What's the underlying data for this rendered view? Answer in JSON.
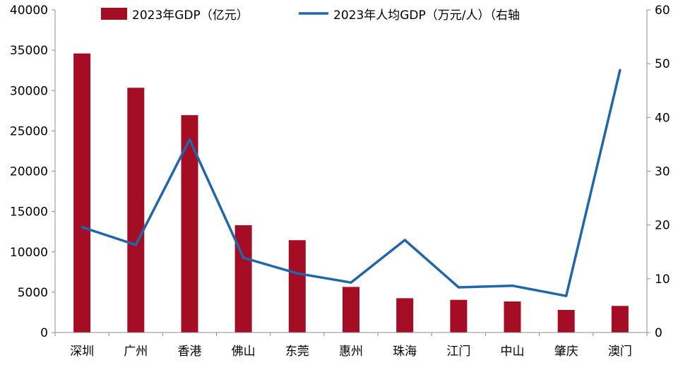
{
  "chart_data": {
    "type": "bar",
    "categories": [
      "深圳",
      "广州",
      "香港",
      "佛山",
      "东莞",
      "惠州",
      "珠海",
      "江门",
      "中山",
      "肇庆",
      "澳门"
    ],
    "series": [
      {
        "name": "2023年GDP（亿元）",
        "type": "bar",
        "axis": "left",
        "color": "#A50D24",
        "values": [
          34600,
          30350,
          26950,
          13300,
          11450,
          5650,
          4250,
          4050,
          3850,
          2800,
          3300
        ]
      },
      {
        "name": "2023年人均GDP（万元/人）（右轴",
        "type": "line",
        "axis": "right",
        "color": "#1F67AA",
        "values": [
          19.6,
          16.3,
          35.9,
          13.9,
          11.0,
          9.3,
          17.2,
          8.4,
          8.7,
          6.8,
          48.8
        ]
      }
    ],
    "y_left": {
      "ylim": [
        0,
        40000
      ],
      "ticks": [
        "0",
        "5000",
        "10000",
        "15000",
        "20000",
        "25000",
        "30000",
        "35000",
        "40000"
      ]
    },
    "y_right": {
      "ylim": [
        0,
        60
      ],
      "ticks": [
        "0",
        "10",
        "20",
        "30",
        "40",
        "50",
        "60"
      ]
    },
    "legend_position": "top",
    "grid": false
  }
}
